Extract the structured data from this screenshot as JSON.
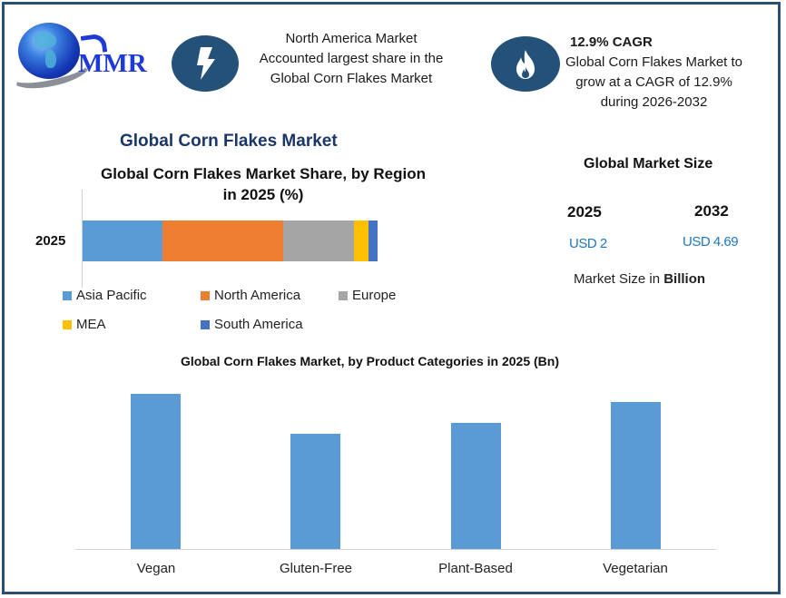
{
  "brand": {
    "logo_text": "MMR",
    "border_color": "#2c4f72",
    "icon_bg": "#245178"
  },
  "callouts": {
    "region": {
      "icon": "lightning-bolt-icon",
      "lines": [
        "North America Market",
        "Accounted largest share in the",
        "Global Corn Flakes Market"
      ]
    },
    "cagr": {
      "icon": "fire-flame-icon",
      "title": "12.9% CAGR",
      "lines": [
        "Global Corn Flakes Market to",
        "grow at a CAGR of 12.9%",
        "during 2026-2032"
      ]
    }
  },
  "main_title": "Global Corn Flakes Market",
  "market_size": {
    "title": "Global Market Size",
    "years": [
      {
        "year": "2025",
        "value": "USD 2"
      },
      {
        "year": "2032",
        "value": "USD 4.69"
      }
    ],
    "note_prefix": "Market Size in ",
    "note_bold": "Billion"
  },
  "chart_data": [
    {
      "type": "bar",
      "orientation": "horizontal-stacked",
      "title": "Global Corn Flakes Market Share, by Region in 2025 (%)",
      "title_lines": [
        "Global Corn Flakes Market Share, by Region",
        "in 2025 (%)"
      ],
      "categories": [
        "2025"
      ],
      "series": [
        {
          "name": "Asia Pacific",
          "values": [
            27
          ],
          "color": "#5b9bd5"
        },
        {
          "name": "North America",
          "values": [
            41
          ],
          "color": "#ed7d31"
        },
        {
          "name": "Europe",
          "values": [
            24
          ],
          "color": "#a5a5a5"
        },
        {
          "name": "MEA",
          "values": [
            5
          ],
          "color": "#ffc000"
        },
        {
          "name": "South America",
          "values": [
            3
          ],
          "color": "#4472c4"
        }
      ],
      "xlabel": "",
      "ylabel": "",
      "legend_position": "bottom",
      "grid": false
    },
    {
      "type": "bar",
      "title": "Global Corn Flakes Market, by Product Categories in 2025 (Bn)",
      "categories": [
        "Vegan",
        "Gluten-Free",
        "Plant-Based",
        "Vegetarian"
      ],
      "values": [
        0.58,
        0.43,
        0.47,
        0.55
      ],
      "color": "#5b9bd5",
      "xlabel": "",
      "ylabel": "",
      "ylim": [
        0,
        0.6
      ],
      "grid": false,
      "legend_position": "none"
    }
  ]
}
